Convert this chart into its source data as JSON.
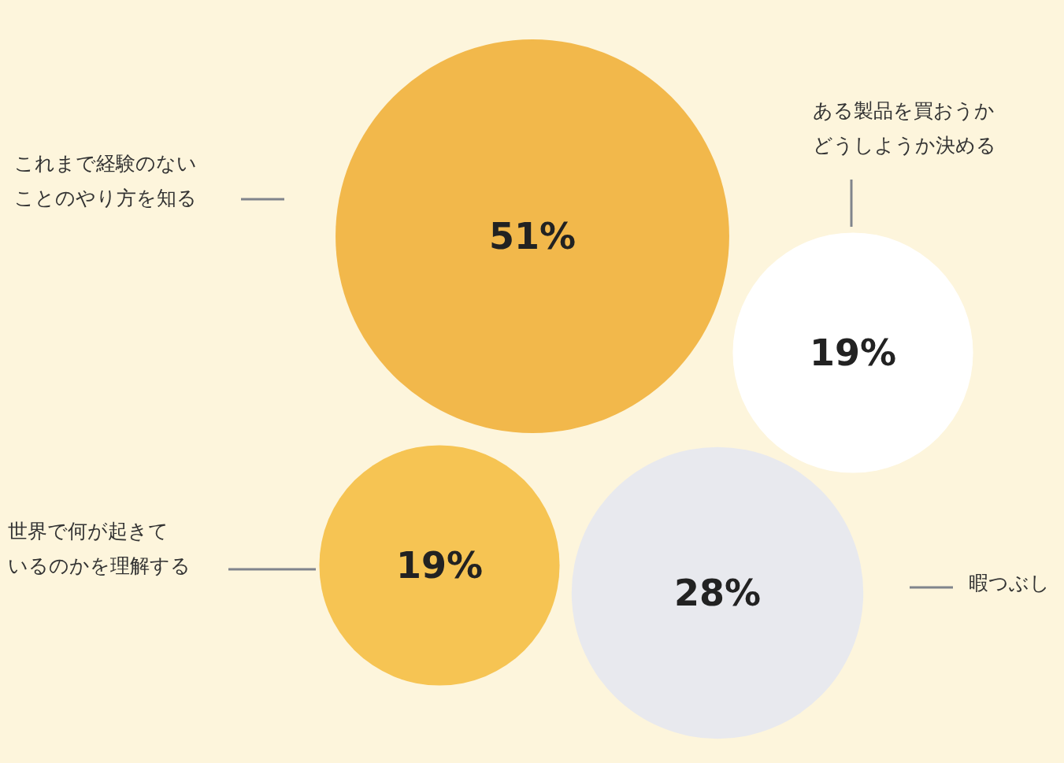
{
  "chart_data": {
    "type": "other",
    "categories": [
      "これまで経験のないことのやり方を知る",
      "ある製品を買おうかどうしようか決める",
      "世界で何が起きているのかを理解する",
      "暇つぶし"
    ],
    "values": [
      51,
      19,
      19,
      28
    ],
    "value_labels": [
      "51%",
      "19%",
      "19%",
      "28%"
    ],
    "colors": [
      "#f2b84b",
      "#ffffff",
      "#f6c453",
      "#e8e9ee"
    ]
  }
}
